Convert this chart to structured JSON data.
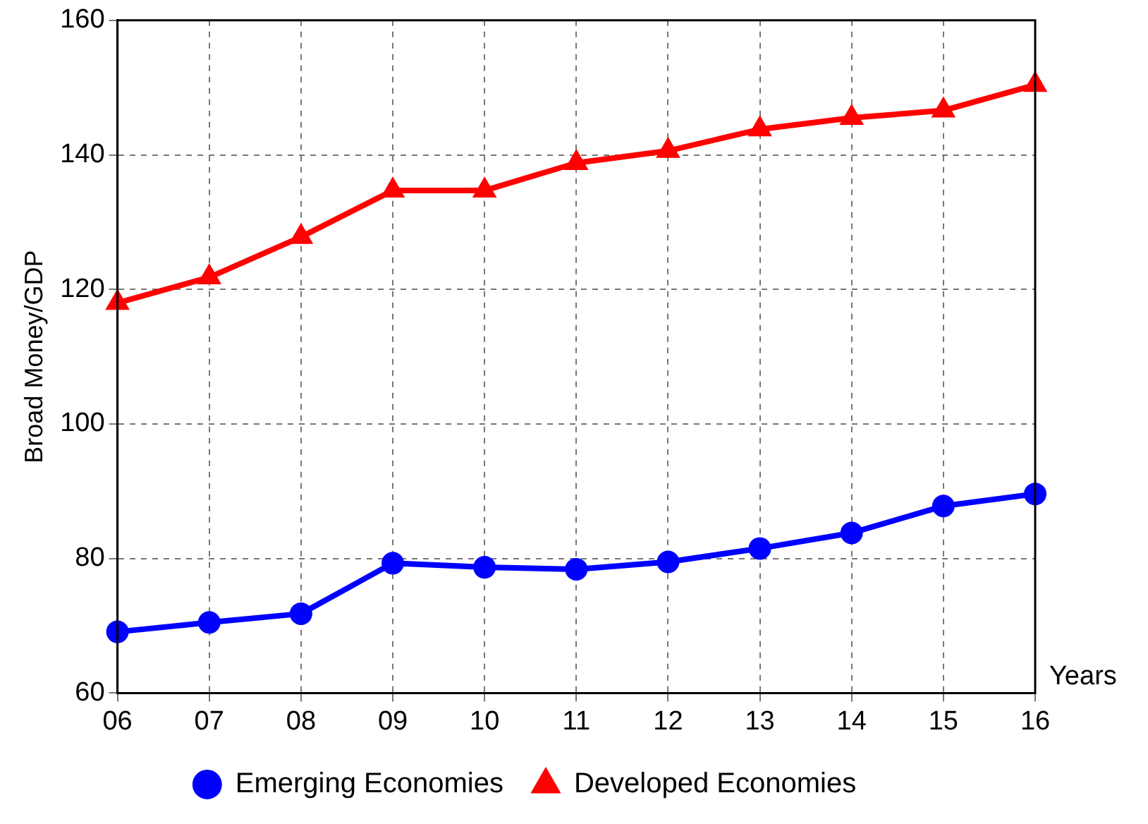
{
  "chart_data": {
    "type": "line",
    "xlabel": "Years",
    "ylabel": "Broad Money/GDP",
    "categories": [
      "06",
      "07",
      "08",
      "09",
      "10",
      "11",
      "12",
      "13",
      "14",
      "15",
      "16"
    ],
    "series": [
      {
        "name": "Emerging Economies",
        "color": "#0000ff",
        "marker": "circle",
        "values": [
          69.1,
          70.5,
          71.8,
          79.3,
          78.7,
          78.4,
          79.5,
          81.5,
          83.8,
          87.8,
          89.6
        ]
      },
      {
        "name": "Developed Economies",
        "color": "#ff0000",
        "marker": "triangle",
        "values": [
          118.0,
          121.8,
          127.8,
          134.7,
          134.7,
          138.8,
          140.6,
          143.8,
          145.5,
          146.6,
          150.4
        ]
      }
    ],
    "ylim": [
      60,
      160
    ],
    "yticks": [
      60,
      80,
      100,
      120,
      140,
      160
    ],
    "grid": true,
    "legend": "bottom",
    "line_style": "solid"
  }
}
